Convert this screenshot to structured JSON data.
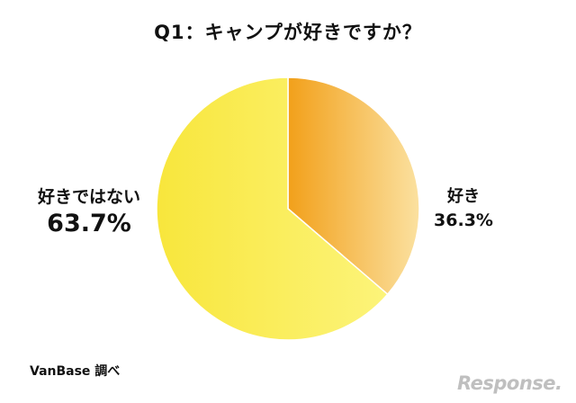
{
  "chart_data": {
    "type": "pie",
    "title": "Q1：キャンプが好きですか？",
    "slices": [
      {
        "label": "好き",
        "value": 36.3,
        "value_label": "36.3%"
      },
      {
        "label": "好きではない",
        "value": 63.7,
        "value_label": "63.7%"
      }
    ],
    "colors": {
      "suki_start": "#f2a01a",
      "suki_end": "#fbe1a0",
      "not_start": "#f8e63c",
      "not_end": "#fcf47a"
    }
  },
  "source": "VanBase 調べ",
  "watermark": "Response."
}
